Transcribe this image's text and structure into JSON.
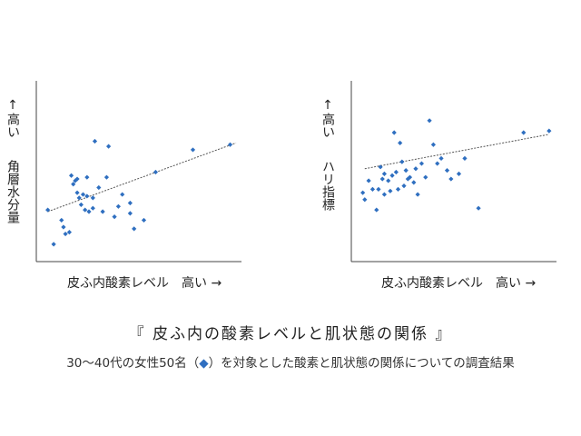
{
  "chart_data": [
    {
      "type": "scatter",
      "ylabel_arrow": "↑",
      "ylabel_high": "高い",
      "ylabel": "角層水分量",
      "xlabel": "皮ふ内酸素レベル　高い →",
      "marker_color": "#2f6fc0",
      "trendline": {
        "x": [
          0.04,
          1.0
        ],
        "y": [
          0.27,
          0.67
        ],
        "color": "#555555",
        "style": "dashed"
      },
      "points": [
        {
          "x": 0.04,
          "y": 0.28
        },
        {
          "x": 0.07,
          "y": 0.08
        },
        {
          "x": 0.11,
          "y": 0.22
        },
        {
          "x": 0.12,
          "y": 0.18
        },
        {
          "x": 0.13,
          "y": 0.14
        },
        {
          "x": 0.15,
          "y": 0.15
        },
        {
          "x": 0.16,
          "y": 0.48
        },
        {
          "x": 0.17,
          "y": 0.43
        },
        {
          "x": 0.18,
          "y": 0.45
        },
        {
          "x": 0.19,
          "y": 0.46
        },
        {
          "x": 0.19,
          "y": 0.38
        },
        {
          "x": 0.2,
          "y": 0.35
        },
        {
          "x": 0.21,
          "y": 0.31
        },
        {
          "x": 0.22,
          "y": 0.37
        },
        {
          "x": 0.23,
          "y": 0.28
        },
        {
          "x": 0.24,
          "y": 0.36
        },
        {
          "x": 0.24,
          "y": 0.47
        },
        {
          "x": 0.25,
          "y": 0.27
        },
        {
          "x": 0.27,
          "y": 0.35
        },
        {
          "x": 0.27,
          "y": 0.29
        },
        {
          "x": 0.28,
          "y": 0.68
        },
        {
          "x": 0.3,
          "y": 0.41
        },
        {
          "x": 0.32,
          "y": 0.27
        },
        {
          "x": 0.34,
          "y": 0.47
        },
        {
          "x": 0.35,
          "y": 0.65
        },
        {
          "x": 0.38,
          "y": 0.24
        },
        {
          "x": 0.4,
          "y": 0.3
        },
        {
          "x": 0.42,
          "y": 0.37
        },
        {
          "x": 0.46,
          "y": 0.32
        },
        {
          "x": 0.46,
          "y": 0.26
        },
        {
          "x": 0.48,
          "y": 0.17
        },
        {
          "x": 0.53,
          "y": 0.22
        },
        {
          "x": 0.59,
          "y": 0.5
        },
        {
          "x": 0.78,
          "y": 0.63
        },
        {
          "x": 0.97,
          "y": 0.66
        }
      ]
    },
    {
      "type": "scatter",
      "ylabel_arrow": "↑",
      "ylabel_high": "高い",
      "ylabel": "ハリ指標",
      "xlabel": "皮ふ内酸素レベル　高い →",
      "marker_color": "#2f6fc0",
      "trendline": {
        "x": [
          0.05,
          0.99
        ],
        "y": [
          0.52,
          0.72
        ],
        "color": "#555555",
        "style": "dashed"
      },
      "points": [
        {
          "x": 0.04,
          "y": 0.38
        },
        {
          "x": 0.05,
          "y": 0.34
        },
        {
          "x": 0.07,
          "y": 0.45
        },
        {
          "x": 0.09,
          "y": 0.4
        },
        {
          "x": 0.11,
          "y": 0.28
        },
        {
          "x": 0.12,
          "y": 0.4
        },
        {
          "x": 0.13,
          "y": 0.53
        },
        {
          "x": 0.14,
          "y": 0.46
        },
        {
          "x": 0.15,
          "y": 0.49
        },
        {
          "x": 0.15,
          "y": 0.37
        },
        {
          "x": 0.17,
          "y": 0.45
        },
        {
          "x": 0.18,
          "y": 0.39
        },
        {
          "x": 0.19,
          "y": 0.48
        },
        {
          "x": 0.2,
          "y": 0.73
        },
        {
          "x": 0.21,
          "y": 0.5
        },
        {
          "x": 0.22,
          "y": 0.4
        },
        {
          "x": 0.23,
          "y": 0.67
        },
        {
          "x": 0.24,
          "y": 0.56
        },
        {
          "x": 0.25,
          "y": 0.42
        },
        {
          "x": 0.26,
          "y": 0.51
        },
        {
          "x": 0.27,
          "y": 0.46
        },
        {
          "x": 0.28,
          "y": 0.47
        },
        {
          "x": 0.3,
          "y": 0.44
        },
        {
          "x": 0.31,
          "y": 0.52
        },
        {
          "x": 0.32,
          "y": 0.37
        },
        {
          "x": 0.34,
          "y": 0.55
        },
        {
          "x": 0.36,
          "y": 0.47
        },
        {
          "x": 0.38,
          "y": 0.8
        },
        {
          "x": 0.4,
          "y": 0.66
        },
        {
          "x": 0.42,
          "y": 0.55
        },
        {
          "x": 0.44,
          "y": 0.58
        },
        {
          "x": 0.47,
          "y": 0.51
        },
        {
          "x": 0.49,
          "y": 0.46
        },
        {
          "x": 0.53,
          "y": 0.49
        },
        {
          "x": 0.56,
          "y": 0.58
        },
        {
          "x": 0.63,
          "y": 0.29
        },
        {
          "x": 0.86,
          "y": 0.73
        },
        {
          "x": 0.99,
          "y": 0.74
        }
      ]
    }
  ],
  "title": "『 皮ふ内の酸素レベルと肌状態の関係 』",
  "subtitle": {
    "before": "30～40代の女性50名（",
    "marker": "◆",
    "after": "）を対象とした酸素と肌状態の関係についての調査結果"
  }
}
